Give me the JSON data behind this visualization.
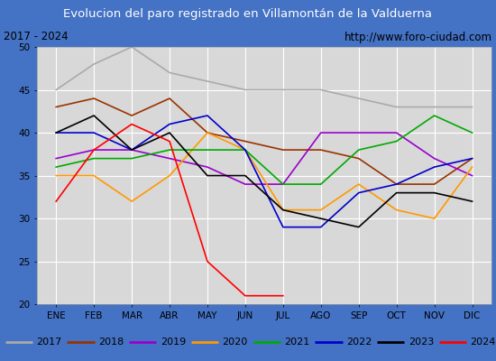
{
  "title": "Evolucion del paro registrado en Villamontán de la Valduerna",
  "subtitle_left": "2017 - 2024",
  "subtitle_right": "http://www.foro-ciudad.com",
  "months": [
    "ENE",
    "FEB",
    "MAR",
    "ABR",
    "MAY",
    "JUN",
    "JUL",
    "AGO",
    "SEP",
    "OCT",
    "NOV",
    "DIC"
  ],
  "ylim": [
    20,
    50
  ],
  "yticks": [
    20,
    25,
    30,
    35,
    40,
    45,
    50
  ],
  "series": {
    "2017": {
      "color": "#aaaaaa",
      "data": [
        45,
        48,
        50,
        47,
        46,
        45,
        45,
        45,
        44,
        43,
        43,
        43
      ]
    },
    "2018": {
      "color": "#993300",
      "data": [
        43,
        44,
        42,
        44,
        40,
        39,
        38,
        38,
        37,
        34,
        34,
        37
      ]
    },
    "2019": {
      "color": "#9900cc",
      "data": [
        37,
        38,
        38,
        37,
        36,
        34,
        34,
        40,
        40,
        40,
        37,
        35
      ]
    },
    "2020": {
      "color": "#ff9900",
      "data": [
        35,
        35,
        32,
        35,
        40,
        38,
        31,
        31,
        34,
        31,
        30,
        36
      ]
    },
    "2021": {
      "color": "#00aa00",
      "data": [
        36,
        37,
        37,
        38,
        38,
        38,
        34,
        34,
        38,
        39,
        42,
        40
      ]
    },
    "2022": {
      "color": "#0000cc",
      "data": [
        40,
        40,
        38,
        41,
        42,
        38,
        29,
        29,
        33,
        34,
        36,
        37
      ]
    },
    "2023": {
      "color": "#000000",
      "data": [
        40,
        42,
        38,
        40,
        35,
        35,
        31,
        30,
        29,
        33,
        33,
        32
      ]
    },
    "2024": {
      "color": "#ff0000",
      "data": [
        32,
        38,
        41,
        39,
        25,
        21,
        21,
        null,
        null,
        null,
        null,
        null
      ]
    }
  },
  "title_bg_color": "#4472c4",
  "title_text_color": "#ffffff",
  "plot_bg_color": "#d8d8d8",
  "grid_color": "#ffffff",
  "border_color": "#4472c4",
  "legend_years": [
    "2017",
    "2018",
    "2019",
    "2020",
    "2021",
    "2022",
    "2023",
    "2024"
  ]
}
